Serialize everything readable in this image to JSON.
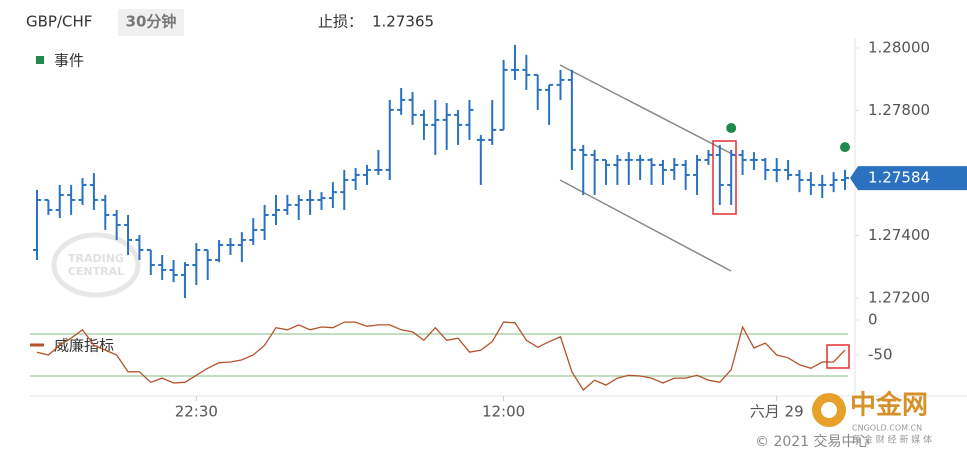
{
  "header": {
    "symbol": "GBP/CHF",
    "timeframe": "30分钟",
    "stop_loss_label": "止损：",
    "stop_loss": 1.27365
  },
  "chart_data": {
    "type": "ohlc",
    "color": "#2a72c0",
    "categories": [
      null,
      null,
      null,
      null,
      null,
      null,
      null,
      null,
      null,
      null,
      null,
      null,
      null,
      null,
      "22:30",
      null,
      null,
      null,
      null,
      null,
      null,
      null,
      null,
      null,
      null,
      null,
      null,
      null,
      null,
      null,
      null,
      null,
      null,
      null,
      null,
      null,
      null,
      null,
      null,
      null,
      null,
      "12:00",
      null,
      null,
      null,
      null,
      null,
      null,
      null,
      null,
      null,
      null,
      null,
      null,
      null,
      null,
      null,
      null,
      null,
      null,
      null,
      null,
      null,
      null,
      null,
      "六月 29",
      null,
      null,
      null,
      null,
      null,
      null
    ],
    "open": [
      1.27354,
      1.27514,
      1.27482,
      1.2753,
      1.27514,
      1.27562,
      1.27514,
      1.27466,
      1.27434,
      1.27386,
      1.27354,
      1.27306,
      1.2729,
      1.27274,
      1.27306,
      1.27354,
      1.27322,
      1.2737,
      1.2737,
      1.27386,
      1.27418,
      1.27466,
      1.27482,
      1.27498,
      1.27514,
      1.27514,
      1.2752,
      1.27539,
      1.27578,
      1.27594,
      1.2761,
      1.2761,
      1.27802,
      1.27834,
      1.27786,
      1.27754,
      1.2777,
      1.27786,
      1.27754,
      1.27706,
      1.27706,
      1.27738,
      1.2793,
      1.2793,
      1.27914,
      1.27866,
      1.27882,
      1.27898,
      1.27674,
      1.27658,
      1.27642,
      1.27626,
      1.27642,
      1.27642,
      1.27642,
      1.27626,
      1.2761,
      1.27626,
      1.27594,
      1.27642,
      1.27658,
      1.27562,
      1.27658,
      1.27642,
      1.27642,
      1.2761,
      1.2761,
      1.27594,
      1.27578,
      1.27562,
      1.27562,
      1.27578
    ],
    "high": [
      1.27546,
      1.27514,
      1.27562,
      1.27562,
      1.27584,
      1.276,
      1.2753,
      1.27482,
      1.27466,
      1.27402,
      1.27354,
      1.27338,
      1.27322,
      1.27315,
      1.27376,
      1.27354,
      1.27386,
      1.27392,
      1.27411,
      1.27456,
      1.27498,
      1.2753,
      1.2753,
      1.2753,
      1.27546,
      1.27539,
      1.27571,
      1.2761,
      1.27616,
      1.27626,
      1.27674,
      1.27834,
      1.27872,
      1.27859,
      1.27802,
      1.27834,
      1.27824,
      1.27802,
      1.27834,
      1.27722,
      1.27834,
      1.27962,
      1.2801,
      1.27978,
      1.27914,
      1.27882,
      1.2793,
      1.2793,
      1.2769,
      1.27674,
      1.27642,
      1.27658,
      1.27667,
      1.27658,
      1.27648,
      1.27642,
      1.27648,
      1.27642,
      1.27658,
      1.27674,
      1.2769,
      1.27674,
      1.27674,
      1.27667,
      1.27648,
      1.27648,
      1.27642,
      1.2761,
      1.27603,
      1.27594,
      1.27603,
      1.2761
    ],
    "low": [
      1.27322,
      1.27466,
      1.27456,
      1.27466,
      1.27498,
      1.27482,
      1.27418,
      1.27386,
      1.27338,
      1.27322,
      1.27274,
      1.27258,
      1.27251,
      1.272,
      1.27242,
      1.27258,
      1.27315,
      1.27338,
      1.27315,
      1.2737,
      1.27386,
      1.27434,
      1.27466,
      1.2745,
      1.27466,
      1.27482,
      1.27488,
      1.27482,
      1.27546,
      1.27562,
      1.27594,
      1.27578,
      1.27786,
      1.27754,
      1.27706,
      1.27658,
      1.27674,
      1.2769,
      1.27706,
      1.27562,
      1.2769,
      1.27738,
      1.27898,
      1.27866,
      1.27802,
      1.27754,
      1.27834,
      1.2761,
      1.2753,
      1.2753,
      1.27562,
      1.27562,
      1.27562,
      1.27578,
      1.27562,
      1.27562,
      1.27578,
      1.27546,
      1.2753,
      1.27626,
      1.27498,
      1.27498,
      1.27594,
      1.2761,
      1.27578,
      1.27571,
      1.27578,
      1.27539,
      1.2753,
      1.2752,
      1.27539,
      1.27546
    ],
    "close": [
      1.27514,
      1.27482,
      1.2753,
      1.27514,
      1.27562,
      1.27514,
      1.27466,
      1.27434,
      1.27386,
      1.27354,
      1.27306,
      1.2729,
      1.27274,
      1.27306,
      1.27354,
      1.27322,
      1.2737,
      1.2737,
      1.27386,
      1.27418,
      1.27466,
      1.27482,
      1.27498,
      1.27514,
      1.27514,
      1.2752,
      1.27539,
      1.27578,
      1.27594,
      1.2761,
      1.2761,
      1.27802,
      1.27834,
      1.27786,
      1.27754,
      1.2777,
      1.27786,
      1.27754,
      1.27802,
      1.27706,
      1.27738,
      1.2793,
      1.2793,
      1.27914,
      1.27866,
      1.27882,
      1.27898,
      1.27674,
      1.27658,
      1.27642,
      1.27626,
      1.27642,
      1.27642,
      1.27642,
      1.27626,
      1.2761,
      1.27626,
      1.27594,
      1.27642,
      1.27658,
      1.27562,
      1.27658,
      1.27642,
      1.27642,
      1.2761,
      1.2761,
      1.27594,
      1.27578,
      1.27562,
      1.27562,
      1.27578,
      1.27584
    ],
    "ylim": [
      1.27178,
      1.28032
    ],
    "yticks": [
      {
        "value": 1.272,
        "label": "1.27200"
      },
      {
        "value": 1.274,
        "label": "1.27400"
      },
      {
        "value": 1.276,
        "label": "1.27600"
      },
      {
        "value": 1.278,
        "label": "1.27800"
      },
      {
        "value": 1.28,
        "label": "1.28000"
      }
    ],
    "current_price": 1.27584,
    "events": {
      "name": "事件",
      "color": "#1f8a4c",
      "values": [
        null,
        null,
        null,
        null,
        null,
        null,
        null,
        null,
        null,
        null,
        null,
        null,
        null,
        null,
        null,
        null,
        null,
        null,
        null,
        null,
        null,
        null,
        null,
        null,
        null,
        null,
        null,
        null,
        null,
        null,
        null,
        null,
        null,
        null,
        null,
        null,
        null,
        null,
        null,
        null,
        null,
        null,
        null,
        null,
        null,
        null,
        null,
        null,
        null,
        null,
        null,
        null,
        null,
        null,
        null,
        null,
        null,
        null,
        null,
        null,
        null,
        1.27744,
        null,
        null,
        null,
        null,
        null,
        null,
        null,
        null,
        null,
        1.27683
      ]
    },
    "indicator": {
      "name": "威廉指标",
      "color": "#b4532a",
      "level_color": "#9cc99a",
      "ylim": [
        -100,
        0
      ],
      "yticks": [
        0,
        -50
      ],
      "levels": [
        -20,
        -80
      ],
      "values": [
        -46,
        -50,
        -36,
        -26,
        -14,
        -36,
        -43,
        -50,
        -74,
        -74,
        -89,
        -83,
        -90,
        -89,
        -79,
        -69,
        -61,
        -60,
        -57,
        -50,
        -36,
        -11,
        -14,
        -7,
        -14,
        -10,
        -11,
        -3,
        -3,
        -9,
        -7,
        -7,
        -14,
        -17,
        -29,
        -11,
        -29,
        -26,
        -46,
        -43,
        -31,
        -3,
        -4,
        -29,
        -39,
        -31,
        -24,
        -74,
        -100,
        -86,
        -93,
        -83,
        -79,
        -80,
        -83,
        -90,
        -83,
        -83,
        -79,
        -86,
        -89,
        -71,
        -10,
        -40,
        -33,
        -50,
        -54,
        -64,
        -69,
        -60,
        -60,
        -43
      ]
    }
  },
  "watermark": {
    "line1": "TRADING",
    "line2": "CENTRAL"
  },
  "logo": {
    "name": "中金网",
    "domain": "CNGOLD.COM.CN",
    "slogan": "黄 金 财 经 新 媒 体"
  },
  "copyright": "© 2021 交易中心"
}
